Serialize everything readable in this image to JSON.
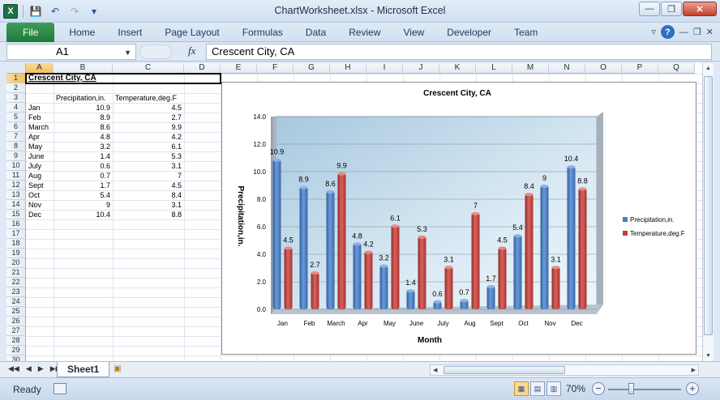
{
  "window": {
    "title": "ChartWorksheet.xlsx - Microsoft Excel",
    "app_icon": "X",
    "minimize": "—",
    "restore": "❐",
    "close": "✕"
  },
  "qat": {
    "save": "💾",
    "undo": "↶",
    "redo": "↷",
    "customize": "▾"
  },
  "ribbon": {
    "tabs": [
      "File",
      "Home",
      "Insert",
      "Page Layout",
      "Formulas",
      "Data",
      "Review",
      "View",
      "Developer",
      "Team"
    ],
    "right_icons": {
      "collapse": "▿",
      "help": "?",
      "min": "—",
      "restore": "❐",
      "close": "✕"
    }
  },
  "formula_bar": {
    "name_box": "A1",
    "fx_label": "fx",
    "content": "Crescent City, CA"
  },
  "columns": [
    "A",
    "B",
    "C",
    "D",
    "E",
    "F",
    "G",
    "H",
    "I",
    "J",
    "K",
    "L",
    "M",
    "N",
    "O",
    "P",
    "Q"
  ],
  "rows": [
    "1",
    "2",
    "3",
    "4",
    "5",
    "6",
    "7",
    "8",
    "9",
    "10",
    "11",
    "12",
    "13",
    "14",
    "15",
    "16",
    "17",
    "18",
    "19",
    "20",
    "21",
    "22",
    "23",
    "24",
    "25",
    "26",
    "27",
    "28",
    "29",
    "30"
  ],
  "sheet": {
    "a1": "Crescent City, CA",
    "header_b": "Precipitation,in.",
    "header_c": "Temperature,deg.F",
    "data": [
      {
        "m": "Jan",
        "p": "10.9",
        "t": "4.5"
      },
      {
        "m": "Feb",
        "p": "8.9",
        "t": "2.7"
      },
      {
        "m": "March",
        "p": "8.6",
        "t": "9.9"
      },
      {
        "m": "Apr",
        "p": "4.8",
        "t": "4.2"
      },
      {
        "m": "May",
        "p": "3.2",
        "t": "6.1"
      },
      {
        "m": "June",
        "p": "1.4",
        "t": "5.3"
      },
      {
        "m": "July",
        "p": "0.6",
        "t": "3.1"
      },
      {
        "m": "Aug",
        "p": "0.7",
        "t": "7"
      },
      {
        "m": "Sept",
        "p": "1.7",
        "t": "4.5"
      },
      {
        "m": "Oct",
        "p": "5.4",
        "t": "8.4"
      },
      {
        "m": "Nov",
        "p": "9",
        "t": "3.1"
      },
      {
        "m": "Dec",
        "p": "10.4",
        "t": "8.8"
      }
    ]
  },
  "chart_data": {
    "type": "bar",
    "title": "Crescent City, CA",
    "xlabel": "Month",
    "ylabel": "Precipitation,in.",
    "ylim": [
      0,
      14
    ],
    "yticks": [
      "0.0",
      "2.0",
      "4.0",
      "6.0",
      "8.0",
      "10.0",
      "12.0",
      "14.0"
    ],
    "categories": [
      "Jan",
      "Feb",
      "March",
      "Apr",
      "May",
      "June",
      "July",
      "Aug",
      "Sept",
      "Oct",
      "Nov",
      "Dec"
    ],
    "series": [
      {
        "name": "Precipitation,in.",
        "color": "#4a7ec4",
        "values": [
          10.9,
          8.9,
          8.6,
          4.8,
          3.2,
          1.4,
          0.6,
          0.7,
          1.7,
          5.4,
          9,
          10.4
        ]
      },
      {
        "name": "Temperature,deg.F",
        "color": "#c0403c",
        "values": [
          4.5,
          2.7,
          9.9,
          4.2,
          6.1,
          5.3,
          3.1,
          7,
          4.5,
          8.4,
          3.1,
          8.8
        ]
      }
    ],
    "legend": "right",
    "grid": true
  },
  "sheet_tabs": {
    "active": "Sheet1"
  },
  "status": {
    "ready": "Ready",
    "zoom": "70%",
    "zoom_minus": "−",
    "zoom_plus": "+"
  }
}
